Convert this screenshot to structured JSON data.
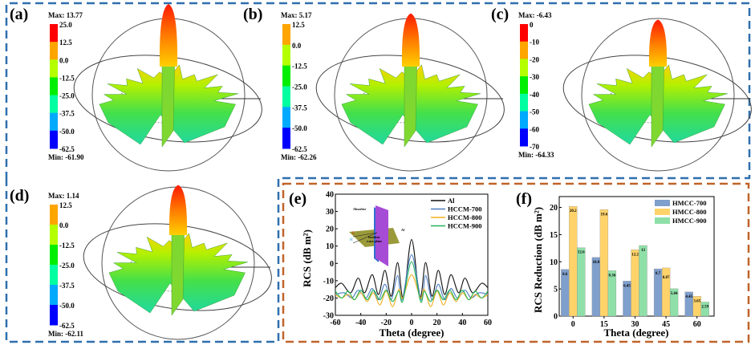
{
  "panels_3d": [
    {
      "label": "(a)",
      "max": "Max: 13.77",
      "min": "Min: -61.90",
      "ticks": [
        "25.0",
        "12.5",
        "0.0",
        "-12.5",
        "-25.0",
        "-37.5",
        "-50.0",
        "-62.5"
      ],
      "peak_level": 1.0
    },
    {
      "label": "(b)",
      "max": "Max: 5.17",
      "min": "Min: -62.26",
      "ticks": [
        "12.5",
        "0.0",
        "-12.5",
        "-25.0",
        "-37.5",
        "-50.0",
        "-62.5"
      ],
      "peak_level": 0.85
    },
    {
      "label": "(c)",
      "max": "Max: -6.43",
      "min": "Min: -64.33",
      "ticks": [
        "0",
        "-10",
        "-20",
        "-30",
        "-40",
        "-50",
        "-60",
        "-70"
      ],
      "peak_level": 0.75
    },
    {
      "label": "(d)",
      "max": "Max: 1.14",
      "min": "Min: -62.11",
      "ticks": [
        "12.5",
        "0.0",
        "-12.5",
        "-25.0",
        "-37.5",
        "-50.0",
        "-62.5"
      ],
      "peak_level": 0.8
    }
  ],
  "colorbar_colors": [
    "#ff0000",
    "#ffa500",
    "#b4ff00",
    "#00ee00",
    "#00ffa0",
    "#00aaff",
    "#0000ff"
  ],
  "frame_colors": {
    "top": "#2f6fae",
    "bottom": "#c0642a"
  },
  "chart_data": [
    {
      "panel_label": "(e)",
      "type": "line",
      "xlabel": "Theta (degree)",
      "ylabel": "RCS (dB m²)",
      "xlim": [
        -60,
        60
      ],
      "ylim": [
        -30,
        40
      ],
      "xticks": [
        "-60",
        "-40",
        "-20",
        "0",
        "20",
        "40",
        "60"
      ],
      "yticks": [
        "40",
        "30",
        "20",
        "10",
        "0",
        "-10",
        "-20",
        "-30"
      ],
      "legend_position": "top-right",
      "inset": {
        "absorber": "Absorber",
        "plane": "Incident",
        "plane2": "wave plane",
        "al": "Al",
        "e": "E",
        "h": "H"
      },
      "series": [
        {
          "name": "Al",
          "color": "#111111",
          "x": [
            -60,
            -55,
            -48,
            -42,
            -37,
            -31,
            -26,
            -21,
            -16,
            -11,
            -6.5,
            0,
            6.5,
            11,
            16,
            21,
            26,
            31,
            37,
            42,
            48,
            55,
            60
          ],
          "y": [
            -14,
            -11.5,
            -17,
            -8.5,
            -17,
            -6.5,
            -18,
            -4,
            -19,
            0.5,
            -20,
            13.8,
            -20,
            0.5,
            -19,
            -4,
            -18,
            -6.5,
            -17,
            -8.5,
            -17,
            -11.5,
            -14
          ]
        },
        {
          "name": "HCCM-700",
          "color": "#4a7cc0",
          "x": [
            -60,
            -53,
            -47,
            -42,
            -36,
            -31,
            -26,
            -21,
            -16,
            -11,
            -7.5,
            0,
            7.5,
            11,
            16,
            21,
            26,
            31,
            36,
            42,
            47,
            53,
            60
          ],
          "y": [
            -18,
            -17,
            -20,
            -15.5,
            -20,
            -14.5,
            -21,
            -12,
            -21,
            -7,
            -21,
            5,
            -21,
            -7,
            -21,
            -12,
            -21,
            -14.5,
            -20,
            -15.5,
            -20,
            -17,
            -18
          ]
        },
        {
          "name": "HCCM-800",
          "color": "#f2b01e",
          "x": [
            -60,
            -55,
            -50,
            -45,
            -40,
            -35,
            -30,
            -25,
            -20,
            -15,
            -10,
            -7,
            0,
            7,
            10,
            15,
            20,
            25,
            30,
            35,
            40,
            45,
            50,
            55,
            60
          ],
          "y": [
            -18,
            -20,
            -18,
            -21,
            -17,
            -22,
            -17,
            -24,
            -16,
            -25,
            -15,
            -20,
            -6.5,
            -20,
            -15,
            -25,
            -16,
            -24,
            -17,
            -22,
            -17,
            -21,
            -18,
            -20,
            -18
          ]
        },
        {
          "name": "HCCM-900",
          "color": "#22b35a",
          "x": [
            -60,
            -55,
            -50,
            -45,
            -40,
            -35,
            -30,
            -25,
            -20,
            -15,
            -10,
            -7,
            0,
            7,
            10,
            15,
            20,
            25,
            30,
            35,
            40,
            45,
            50,
            55,
            60
          ],
          "y": [
            -16,
            -20,
            -16,
            -21,
            -15.5,
            -21,
            -15.5,
            -21,
            -15.5,
            -22,
            -16,
            -22,
            1,
            -22,
            -16,
            -22,
            -15.5,
            -21,
            -15.5,
            -21,
            -15.5,
            -21,
            -16,
            -20,
            -16
          ]
        }
      ]
    },
    {
      "panel_label": "(f)",
      "type": "bar",
      "xlabel": "Theta (degree)",
      "ylabel": "RCS Reduction (dB m²)",
      "categories": [
        "0",
        "15",
        "30",
        "45",
        "60"
      ],
      "ylim": [
        0,
        22
      ],
      "yticks": [
        "0",
        "5",
        "10",
        "15",
        "20"
      ],
      "legend_position": "top-right",
      "series": [
        {
          "name": "HMCC-700",
          "color": "#7f9fcc",
          "values": [
            8.6,
            10.8,
            6.45,
            8.7,
            4.45
          ],
          "labels": [
            "8.6",
            "10.8",
            "6.45",
            "8.7",
            "4.45"
          ]
        },
        {
          "name": "HMCC-800",
          "color": "#ffd36a",
          "values": [
            20.2,
            19.6,
            12.2,
            8.87,
            3.65
          ],
          "labels": [
            "20.2",
            "19.6",
            "12.2",
            "8.87",
            "3.65"
          ]
        },
        {
          "name": "HMCC-900",
          "color": "#8fe0a8",
          "values": [
            12.6,
            8.36,
            13,
            5.04,
            2.59
          ],
          "labels": [
            "12.6",
            "8.36",
            "13",
            "5.04",
            "2.59"
          ]
        }
      ]
    }
  ]
}
